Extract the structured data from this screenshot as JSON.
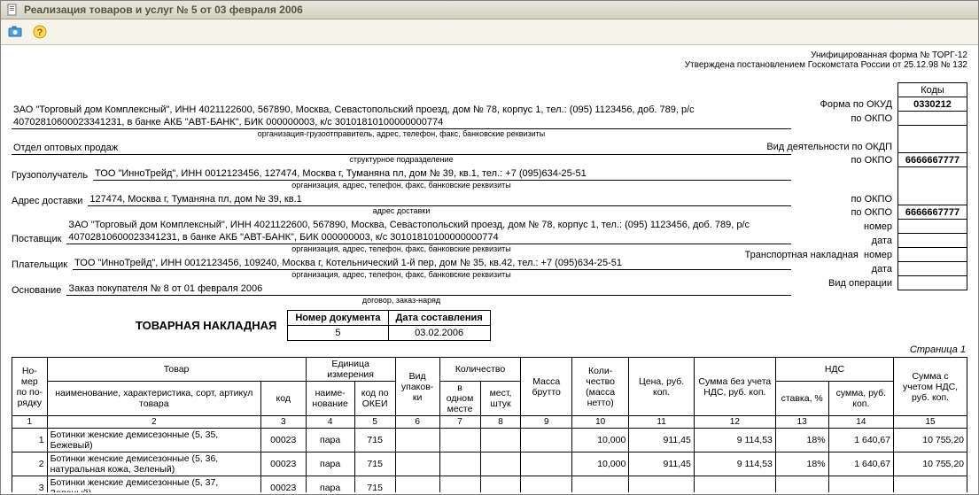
{
  "window": {
    "title": "Реализация товаров и услуг № 5 от 03 февраля 2006"
  },
  "form_meta": {
    "line1": "Унифицированная форма № ТОРГ-12",
    "line2": "Утверждена постановлением Госкомстата России от 25.12.98 № 132"
  },
  "codes": {
    "header": "Коды",
    "okud_label": "Форма по ОКУД",
    "okud": "0330212",
    "okpo1_label": "по ОКПО",
    "okpo1": "",
    "okdp_label": "Вид деятельности по ОКДП",
    "okdp": "",
    "okpo2_label": "по ОКПО",
    "okpo2": "6666667777",
    "okpo3_label": "по ОКПО",
    "okpo3": "",
    "okpo4_label": "по ОКПО",
    "okpo4": "6666667777",
    "nomer1_label": "номер",
    "nomer1": "",
    "data1_label": "дата",
    "data1": "",
    "tn_label": "Транспортная накладная",
    "nomer2_label": "номер",
    "nomer2": "",
    "data2_label": "дата",
    "data2": "",
    "vid_oper_label": "Вид операции",
    "vid_oper": ""
  },
  "header": {
    "sender": "ЗАО \"Торговый дом Комплексный\", ИНН 4021122600, 567890, Москва, Севастопольский проезд, дом № 78, корпус 1, тел.: (095) 1123456, доб. 789, р/с 40702810600023341231, в банке АКБ \"АВТ-БАНК\", БИК 000000003, к/с 30101810100000000774",
    "sender_caption": "организация-грузоотправитель, адрес, телефон, факс, банковские реквизиты",
    "struct_unit": "Отдел оптовых продаж",
    "struct_caption": "структурное подразделение",
    "consignee_label": "Грузополучатель",
    "consignee": "ТОО \"ИнноТрейд\", ИНН 0012123456, 127474, Москва г, Туманяна пл, дом № 39, кв.1, тел.: +7 (095)634-25-51",
    "consignee_caption": "организация, адрес, телефон, факс, банковские реквизиты",
    "delivery_label": "Адрес доставки",
    "delivery": "127474, Москва г, Туманяна пл, дом № 39, кв.1",
    "delivery_caption": "адрес доставки",
    "supplier_label": "Поставщик",
    "supplier": "ЗАО \"Торговый дом Комплексный\", ИНН 4021122600, 567890, Москва, Севастопольский проезд, дом № 78, корпус 1, тел.: (095) 1123456, доб. 789, р/с 40702810600023341231, в банке АКБ \"АВТ-БАНК\", БИК 000000003, к/с 30101810100000000774",
    "supplier_caption": "организация, адрес, телефон, факс, банковские реквизиты",
    "payer_label": "Плательщик",
    "payer": "ТОО \"ИнноТрейд\", ИНН 0012123456, 109240, Москва г, Котельнический 1-й пер, дом № 35, кв.42, тел.: +7 (095)634-25-51",
    "payer_caption": "организация, адрес, телефон, факс, банковские реквизиты",
    "basis_label": "Основание",
    "basis": "Заказ покупателя № 8 от 01 февраля 2006",
    "basis_caption": "договор, заказ-наряд"
  },
  "doc": {
    "title": "ТОВАРНАЯ НАКЛАДНАЯ",
    "num_header1": "Номер документа",
    "num_header2": "Дата составления",
    "number": "5",
    "date": "03.02.2006",
    "page": "Страница 1"
  },
  "table": {
    "headers": {
      "nomer": "Но-\nмер\nпо по-\nрядку",
      "tovar": "Товар",
      "tovar_name": "наименование, характеристика, сорт, артикул товара",
      "tovar_code": "код",
      "unit": "Единица измерения",
      "unit_name": "наиме-\nнование",
      "unit_code": "код по ОКЕИ",
      "pack": "Вид упаков-\nки",
      "qty": "Количество",
      "qty_in": "в одном месте",
      "qty_places": "мест, штук",
      "gross": "Масса брутто",
      "net": "Коли-\nчество (масса нетто)",
      "price": "Цена, руб. коп.",
      "sum_no_nds": "Сумма без учета НДС, руб. коп.",
      "nds": "НДС",
      "nds_rate": "ставка, %",
      "nds_sum": "сумма, руб. коп.",
      "sum_nds": "Сумма с учетом НДС, руб. коп."
    },
    "colnums": [
      "1",
      "2",
      "3",
      "4",
      "5",
      "6",
      "7",
      "8",
      "9",
      "10",
      "11",
      "12",
      "13",
      "14",
      "15"
    ],
    "rows": [
      {
        "n": "1",
        "name": "Ботинки женские демисезонные (5, 35, Бежевый)",
        "code": "00023",
        "unit": "пара",
        "okei": "715",
        "pack": "",
        "in_one": "",
        "places": "",
        "gross": "",
        "net": "10,000",
        "price": "911,45",
        "sum_no_nds": "9 114,53",
        "rate": "18%",
        "nds_sum": "1 640,67",
        "total": "10 755,20"
      },
      {
        "n": "2",
        "name": "Ботинки женские демисезонные (5, 36, натуральная кожа, Зеленый)",
        "code": "00023",
        "unit": "пара",
        "okei": "715",
        "pack": "",
        "in_one": "",
        "places": "",
        "gross": "",
        "net": "10,000",
        "price": "911,45",
        "sum_no_nds": "9 114,53",
        "rate": "18%",
        "nds_sum": "1 640,67",
        "total": "10 755,20"
      },
      {
        "n": "3",
        "name": "Ботинки женские демисезонные (5, 37, Зеленый)",
        "code": "00023",
        "unit": "пара",
        "okei": "715",
        "pack": "",
        "in_one": "",
        "places": "",
        "gross": "",
        "net": "",
        "price": "",
        "sum_no_nds": "",
        "rate": "",
        "nds_sum": "",
        "total": ""
      }
    ]
  }
}
